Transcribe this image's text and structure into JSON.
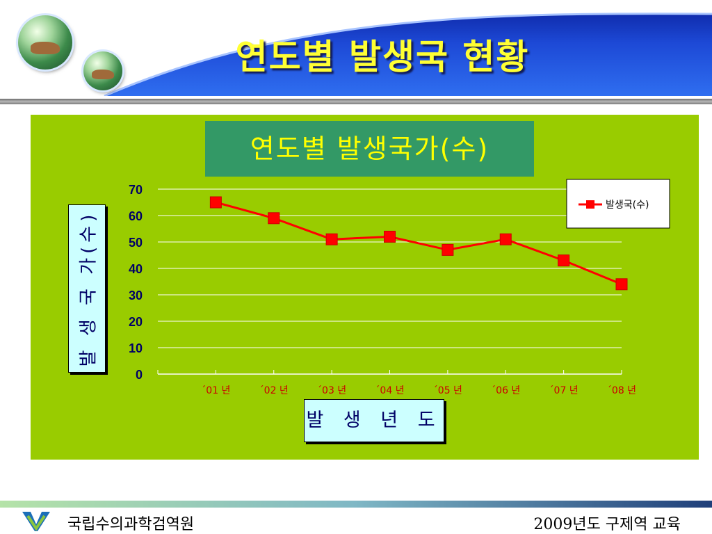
{
  "slide": {
    "title": "연도별 발생국 현황",
    "org": "국립수의과학검역원",
    "edu": "2009년도 구제역 교육"
  },
  "icons": {
    "logo": "v-logo-icon",
    "orb_large": "cattle-orb-icon",
    "orb_small": "cattle-orb-icon"
  },
  "colors": {
    "panel": "#99cc00",
    "title_box": "#339966",
    "series": "#ff0000"
  },
  "chart_data": {
    "type": "line",
    "title": "연도별 발생국가(수)",
    "xlabel": "발 생 년 도",
    "ylabel": "발 생 국 가(수)",
    "categories": [
      "´01 년",
      "´02 년",
      "´03 년",
      "´04 년",
      "´05 년",
      "´06 년",
      "´07 년",
      "´08 년"
    ],
    "series": [
      {
        "name": "발생국(수)",
        "values": [
          65,
          59,
          51,
          52,
          47,
          51,
          43,
          34
        ]
      }
    ],
    "ylim": [
      0,
      70
    ],
    "yticks": [
      0,
      10,
      20,
      30,
      40,
      50,
      60,
      70
    ],
    "grid": true,
    "legend": "top-right"
  }
}
